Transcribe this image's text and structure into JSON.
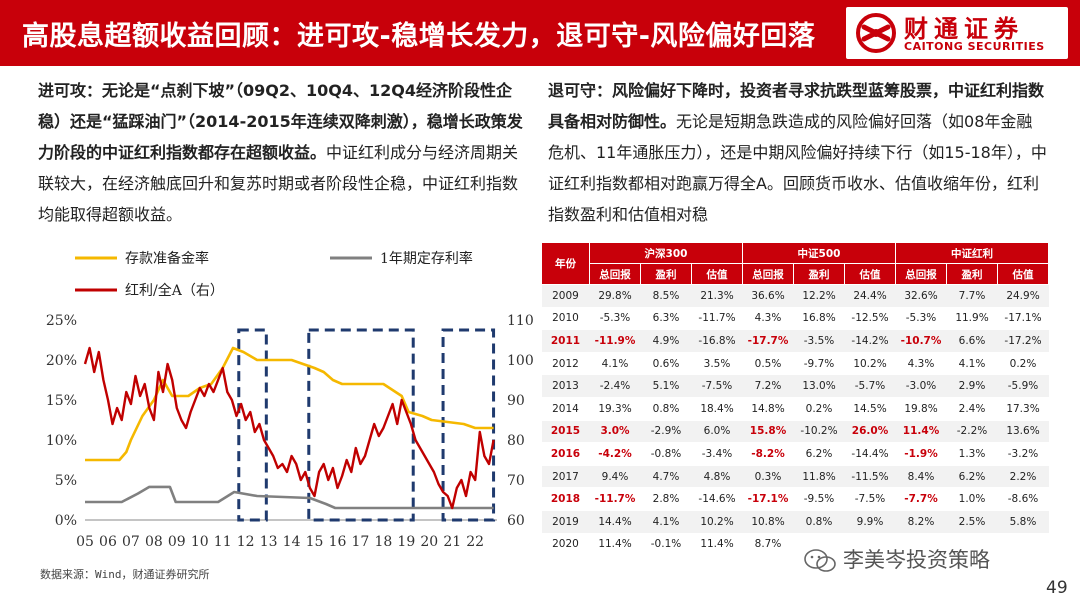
{
  "header": {
    "title": "高股息超额收益回顾：进可攻-稳增长发力，退可守-风险偏好回落",
    "logo_cn": "财通证券",
    "logo_en": "CAITONG SECURITIES"
  },
  "left": {
    "bold": "进可攻：无论是“点刹下坡”（09Q2、10Q4、12Q4经济阶段性企稳）还是“猛踩油门”（2014-2015年连续双降刺激），稳增长政策发力阶段的中证红利指数都存在超额收益。",
    "normal": "中证红利成分与经济周期关联较大，在经济触底回升和复苏时期或者阶段性企稳，中证红利指数均能取得超额收益。"
  },
  "right": {
    "bold": "退可守：风险偏好下降时，投资者寻求抗跌型蓝筹股票，中证红利指数具备相对防御性。",
    "normal": "无论是短期急跌造成的风险偏好回落（如08年金融危机、11年通胀压力），还是中期风险偏好持续下行（如15-18年），中证红利指数都相对跑赢万得全A。回顾货币收水、估值收缩年份，红利指数盈利和估值相对稳"
  },
  "chart_data": {
    "type": "line",
    "legend": [
      "存款准备金率",
      "1年期定存利率",
      "红利/全A（右）"
    ],
    "colors": [
      "#f5b800",
      "#808080",
      "#c00000"
    ],
    "x_ticks": [
      "05",
      "06",
      "07",
      "08",
      "09",
      "10",
      "11",
      "12",
      "13",
      "14",
      "15",
      "16",
      "17",
      "18",
      "19",
      "20",
      "21",
      "22"
    ],
    "y_left_ticks": [
      "0%",
      "5%",
      "10%",
      "15%",
      "20%",
      "25%"
    ],
    "y_left_range": [
      0,
      25
    ],
    "y_right_ticks": [
      "60",
      "70",
      "80",
      "90",
      "100",
      "110"
    ],
    "y_right_range": [
      60,
      110
    ],
    "series": [
      {
        "name": "存款准备金率",
        "axis": "left",
        "x": [
          2005.0,
          2006.5,
          2006.8,
          2007.0,
          2007.5,
          2008.0,
          2008.4,
          2008.8,
          2009.5,
          2010.0,
          2010.5,
          2011.0,
          2011.45,
          2011.9,
          2012.5,
          2014.0,
          2015.0,
          2015.4,
          2015.8,
          2016.2,
          2018.0,
          2018.8,
          2019.1,
          2019.7,
          2020.1,
          2021.5,
          2022.0,
          2022.8
        ],
        "values": [
          7.5,
          7.5,
          8.5,
          10,
          13,
          15,
          17.5,
          15.5,
          15.5,
          16.5,
          17,
          19,
          21.5,
          21,
          20,
          20,
          19,
          18.5,
          17.5,
          17,
          17,
          15.5,
          13.5,
          13,
          12.5,
          12,
          11.5,
          11.5
        ]
      },
      {
        "name": "1年期定存利率",
        "axis": "left",
        "x": [
          2005.0,
          2006.6,
          2007.3,
          2007.8,
          2008.7,
          2008.95,
          2010.8,
          2011.5,
          2012.5,
          2014.8,
          2015.5,
          2015.9,
          2022.8
        ],
        "values": [
          2.25,
          2.25,
          3.3,
          4.14,
          4.14,
          2.25,
          2.25,
          3.5,
          3.0,
          2.75,
          2.0,
          1.5,
          1.5
        ]
      },
      {
        "name": "红利/全A（右）",
        "axis": "right",
        "x": [
          2005.0,
          2005.2,
          2005.4,
          2005.6,
          2005.8,
          2006.0,
          2006.2,
          2006.4,
          2006.6,
          2006.8,
          2007.0,
          2007.2,
          2007.4,
          2007.6,
          2007.8,
          2008.0,
          2008.2,
          2008.4,
          2008.6,
          2008.8,
          2009.0,
          2009.2,
          2009.4,
          2009.6,
          2009.8,
          2010.0,
          2010.2,
          2010.4,
          2010.6,
          2010.8,
          2011.0,
          2011.2,
          2011.4,
          2011.6,
          2011.8,
          2012.0,
          2012.2,
          2012.4,
          2012.6,
          2012.8,
          2013.0,
          2013.2,
          2013.4,
          2013.6,
          2013.8,
          2014.0,
          2014.2,
          2014.4,
          2014.6,
          2014.8,
          2015.0,
          2015.2,
          2015.4,
          2015.6,
          2015.8,
          2016.0,
          2016.2,
          2016.4,
          2016.6,
          2016.8,
          2017.0,
          2017.2,
          2017.4,
          2017.6,
          2017.8,
          2018.0,
          2018.2,
          2018.4,
          2018.6,
          2018.8,
          2019.0,
          2019.2,
          2019.4,
          2019.6,
          2019.8,
          2020.0,
          2020.2,
          2020.4,
          2020.6,
          2020.8,
          2021.0,
          2021.2,
          2021.4,
          2021.6,
          2021.8,
          2022.0,
          2022.2,
          2022.4,
          2022.6,
          2022.8
        ],
        "values": [
          99,
          103,
          97,
          102,
          95,
          90,
          84,
          88,
          85,
          92,
          89,
          96,
          91,
          94,
          88,
          85,
          97,
          92,
          99,
          95,
          88,
          85,
          83,
          87,
          90,
          93,
          91,
          94,
          92,
          95,
          98,
          92,
          90,
          86,
          89,
          85,
          87,
          82,
          84,
          80,
          78,
          76,
          73,
          74,
          72,
          76,
          74,
          70,
          72,
          68,
          66,
          72,
          74,
          70,
          73,
          68,
          71,
          75,
          72,
          78,
          74,
          76,
          80,
          84,
          81,
          83,
          86,
          89,
          84,
          90,
          87,
          84,
          80,
          78,
          76,
          74,
          72,
          69,
          67,
          66,
          63,
          68,
          70,
          66,
          72,
          70,
          82,
          76,
          74,
          80
        ]
      }
    ],
    "source": "数据来源：Wind，财通证券研究所"
  },
  "table": {
    "col_year": "年份",
    "groups": [
      "沪深300",
      "中证500",
      "中证红利"
    ],
    "sub_headers": [
      "总回报",
      "盈利",
      "估值",
      "总回报",
      "盈利",
      "估值",
      "总回报",
      "盈利",
      "估值"
    ],
    "rows": [
      {
        "year": "2009",
        "red": false,
        "cells": [
          "29.8%",
          "8.5%",
          "21.3%",
          "36.6%",
          "12.2%",
          "24.4%",
          "32.6%",
          "7.7%",
          "24.9%"
        ]
      },
      {
        "year": "2010",
        "red": false,
        "cells": [
          "-5.3%",
          "6.3%",
          "-11.7%",
          "4.3%",
          "16.8%",
          "-12.5%",
          "-5.3%",
          "11.9%",
          "-17.1%"
        ]
      },
      {
        "year": "2011",
        "red": true,
        "cells": [
          "-11.9%",
          "4.9%",
          "-16.8%",
          "-17.7%",
          "-3.5%",
          "-14.2%",
          "-10.7%",
          "6.6%",
          "-17.2%"
        ],
        "red_idx": [
          0,
          3,
          6
        ]
      },
      {
        "year": "2012",
        "red": false,
        "cells": [
          "4.1%",
          "0.6%",
          "3.5%",
          "0.5%",
          "-9.7%",
          "10.2%",
          "4.3%",
          "4.1%",
          "0.2%"
        ]
      },
      {
        "year": "2013",
        "red": false,
        "cells": [
          "-2.4%",
          "5.1%",
          "-7.5%",
          "7.2%",
          "13.0%",
          "-5.7%",
          "-3.0%",
          "2.9%",
          "-5.9%"
        ]
      },
      {
        "year": "2014",
        "red": false,
        "cells": [
          "19.3%",
          "0.8%",
          "18.4%",
          "14.8%",
          "0.2%",
          "14.5%",
          "19.8%",
          "2.4%",
          "17.3%"
        ]
      },
      {
        "year": "2015",
        "red": true,
        "cells": [
          "3.0%",
          "-2.9%",
          "6.0%",
          "15.8%",
          "-10.2%",
          "26.0%",
          "11.4%",
          "-2.2%",
          "13.6%"
        ],
        "red_idx": [
          0,
          3,
          5,
          6
        ]
      },
      {
        "year": "2016",
        "red": true,
        "cells": [
          "-4.2%",
          "-0.8%",
          "-3.4%",
          "-8.2%",
          "6.2%",
          "-14.4%",
          "-1.9%",
          "1.3%",
          "-3.2%"
        ],
        "red_idx": [
          0,
          3,
          6
        ]
      },
      {
        "year": "2017",
        "red": false,
        "cells": [
          "9.4%",
          "4.7%",
          "4.8%",
          "0.3%",
          "11.8%",
          "-11.5%",
          "8.4%",
          "6.2%",
          "2.2%"
        ]
      },
      {
        "year": "2018",
        "red": true,
        "cells": [
          "-11.7%",
          "2.8%",
          "-14.6%",
          "-17.1%",
          "-9.5%",
          "-7.5%",
          "-7.7%",
          "1.0%",
          "-8.6%"
        ],
        "red_idx": [
          0,
          3,
          6
        ]
      },
      {
        "year": "2019",
        "red": false,
        "cells": [
          "14.4%",
          "4.1%",
          "10.2%",
          "10.8%",
          "0.8%",
          "9.9%",
          "8.2%",
          "2.5%",
          "5.8%"
        ]
      },
      {
        "year": "2020",
        "red": false,
        "cells": [
          "11.4%",
          "-0.1%",
          "11.4%",
          "8.7%",
          "",
          "",
          "",
          "",
          ""
        ]
      }
    ]
  },
  "watermark": "李美岑投资策略",
  "page_number": "49"
}
